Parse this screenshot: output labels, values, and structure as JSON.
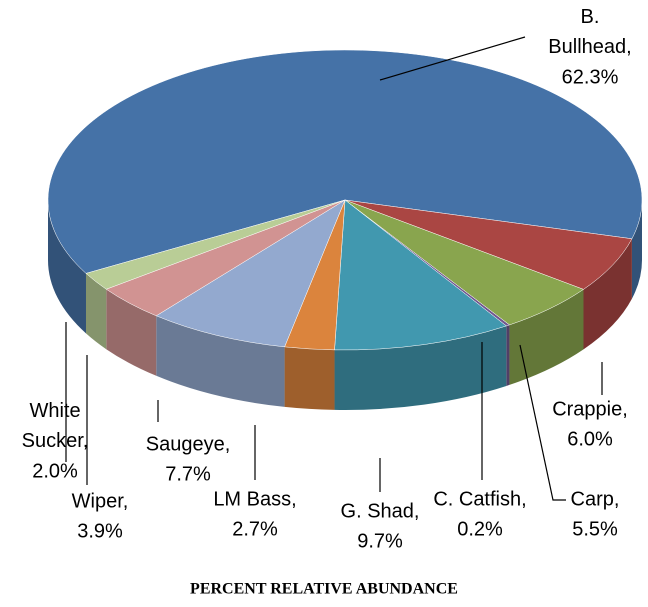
{
  "chart_data": {
    "type": "pie",
    "title": "PERCENT RELATIVE ABUNDANCE",
    "categories": [
      "B. Bullhead,",
      "Crappie,",
      "Carp,",
      "C. Catfish,",
      "G. Shad,",
      "LM Bass,",
      "Saugeye,",
      "Wiper,",
      "White Sucker,"
    ],
    "values": [
      62.3,
      6.0,
      5.5,
      0.2,
      9.7,
      2.7,
      7.7,
      3.9,
      2.0
    ],
    "value_labels": [
      "62.3%",
      "6.0%",
      "5.5%",
      "0.2%",
      "9.7%",
      "2.7%",
      "7.7%",
      "3.9%",
      "2.0%"
    ],
    "colors": [
      "#4572a7",
      "#aa4643",
      "#89a54e",
      "#71588f",
      "#4198af",
      "#db843d",
      "#93a9cf",
      "#d19392",
      "#b9cd96"
    ]
  }
}
